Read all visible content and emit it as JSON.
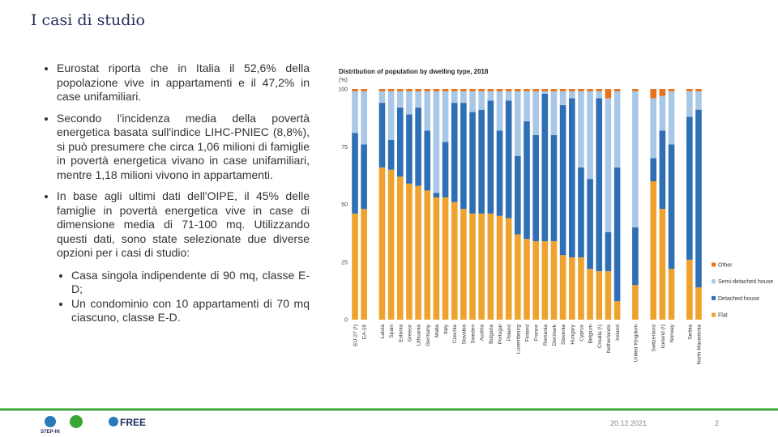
{
  "header": {
    "title": "I casi di studio"
  },
  "bullets": [
    "Eurostat riporta che in Italia il 52,6% della popolazione vive in appartamenti e il 47,2% in case unifamiliari.",
    "Secondo l'incidenza media della povertà energetica basata sull'indice LIHC-PNIEC (8,8%), si può presumere che circa 1,06 milioni di famiglie in povertà energetica vivano in case unifamiliari, mentre 1,18 milioni vivono in appartamenti.",
    "In base agli ultimi dati dell'OIPE, il 45% delle famiglie in povertà energetica vive in case di dimensione media di 71-100 mq. Utilizzando questi dati, sono state selezionate due diverse opzioni per i casi di studio:"
  ],
  "sub_bullets": [
    "Casa singola indipendente di 90 mq, classe E-D;",
    "Un condominio con 10 appartamenti di 70 mq ciascuno, classe E-D."
  ],
  "chart_data": {
    "type": "stacked_bar",
    "title": "Distribution of population by dwelling type, 2018",
    "y_label": "(%)",
    "categories": [
      "EU-27 (¹)",
      "EA-19",
      null,
      "Latvia",
      "Spain",
      "Estonia",
      "Greece",
      "Lithuania",
      "Germany",
      "Malta",
      "Italy",
      "Czechia",
      "Slovakia",
      "Sweden",
      "Austria",
      "Bulgaria",
      "Portugal",
      "Poland",
      "Luxembourg",
      "Finland",
      "France",
      "Romania",
      "Denmark",
      "Slovenia",
      "Hungary",
      "Cyprus",
      "Belgium",
      "Croatia (¹)",
      "Netherlands",
      "Ireland",
      null,
      "United Kingdom",
      null,
      "Switzerland",
      "Iceland (¹)",
      "Norway",
      null,
      "Serbia",
      "North Macedonia"
    ],
    "series": [
      {
        "name": "Flat",
        "color": "#f0a22e",
        "values": [
          46,
          48,
          null,
          66,
          65,
          62,
          59,
          58,
          56,
          53,
          53,
          51,
          48,
          46,
          46,
          46,
          45,
          44,
          37,
          35,
          34,
          34,
          34,
          28,
          27,
          27,
          22,
          21,
          21,
          8,
          null,
          15,
          null,
          60,
          48,
          22,
          null,
          26,
          14
        ]
      },
      {
        "name": "Detached house",
        "color": "#2e6fb5",
        "values": [
          35,
          28,
          null,
          28,
          13,
          30,
          30,
          34,
          26,
          2,
          24,
          43,
          46,
          44,
          45,
          49,
          37,
          51,
          34,
          51,
          46,
          64,
          46,
          65,
          69,
          39,
          39,
          75,
          17,
          58,
          null,
          25,
          null,
          10,
          34,
          54,
          null,
          62,
          77
        ]
      },
      {
        "name": "Semi-detached house",
        "color": "#a9c8e8",
        "values": [
          18,
          23,
          null,
          5,
          21,
          7,
          10,
          7,
          17,
          44,
          22,
          5,
          5,
          9,
          8,
          4,
          17,
          4,
          28,
          13,
          19,
          1,
          19,
          6,
          3,
          33,
          38,
          3,
          58,
          33,
          null,
          59,
          null,
          26,
          15,
          23,
          null,
          11,
          8
        ]
      },
      {
        "name": "Other",
        "color": "#e8731e",
        "values": [
          1,
          1,
          null,
          1,
          1,
          1,
          1,
          1,
          1,
          1,
          1,
          1,
          1,
          1,
          1,
          1,
          1,
          1,
          1,
          1,
          1,
          1,
          1,
          1,
          1,
          1,
          1,
          1,
          4,
          1,
          null,
          1,
          null,
          4,
          3,
          1,
          null,
          1,
          1
        ]
      }
    ],
    "ylim": [
      0,
      100
    ],
    "yticks": [
      0,
      25,
      50,
      75,
      100
    ],
    "grid": false
  },
  "footer": {
    "logos": [
      "STEP-IN",
      "FREE"
    ],
    "date": "20.12.2021",
    "page": "2"
  }
}
